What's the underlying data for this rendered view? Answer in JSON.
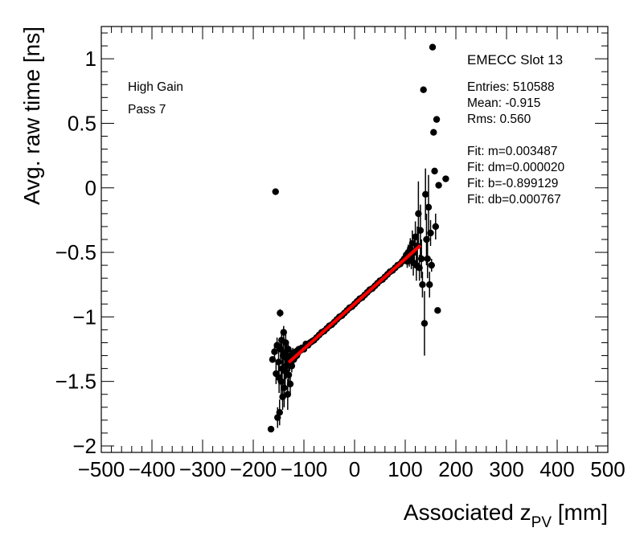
{
  "chart_data": {
    "type": "scatter",
    "title": "",
    "xlabel": "Associated z",
    "xlabel_sub": "PV",
    "xlabel_unit": " [mm]",
    "ylabel": "Avg. raw time [ns]",
    "xlim": [
      -500,
      500
    ],
    "ylim": [
      -2.05,
      1.25
    ],
    "x_ticks": [
      -500,
      -400,
      -300,
      -200,
      -100,
      0,
      100,
      200,
      300,
      400,
      500
    ],
    "x_tick_labels": [
      "−500",
      "−400",
      "−300",
      "−200",
      "−100",
      "0",
      "100",
      "200",
      "300",
      "400",
      "500"
    ],
    "y_ticks": [
      -2,
      -1.5,
      -1,
      -0.5,
      0,
      0.5,
      1
    ],
    "y_tick_labels": [
      "−2",
      "−1.5",
      "−1",
      "−0.5",
      "0",
      "0.5",
      "1"
    ],
    "grid": false,
    "annotations": {
      "gain": "High Gain",
      "pass": "Pass 7"
    },
    "stats_box": {
      "title": "EMECC Slot 13",
      "lines": [
        "Entries: 510588",
        "Mean: -0.915",
        "Rms: 0.560"
      ],
      "fit_lines": [
        "Fit: m=0.003487",
        "Fit: dm=0.000020",
        "Fit: b=-0.899129",
        "Fit: db=0.000767"
      ]
    },
    "fit": {
      "m": 0.003487,
      "b": -0.899129,
      "x_range": [
        -130,
        130
      ],
      "color": "#ff0000"
    },
    "marker_color": "#000000",
    "series": [
      {
        "points": [
          [
            -165,
            -1.87,
            0
          ],
          [
            -162,
            -1.33,
            0
          ],
          [
            -158,
            -1.27,
            0.05
          ],
          [
            -156,
            -0.03,
            0
          ],
          [
            -155,
            -1.44,
            0.08
          ],
          [
            -153,
            -1.22,
            0.06
          ],
          [
            -152,
            -1.78,
            0.08
          ],
          [
            -150,
            -1.35,
            0.1
          ],
          [
            -149,
            -1.47,
            0.12
          ],
          [
            -148,
            -1.74,
            0.1
          ],
          [
            -147,
            -0.97,
            0.03
          ],
          [
            -146,
            -1.25,
            0.08
          ],
          [
            -145,
            -1.5,
            0.1
          ],
          [
            -144,
            -1.18,
            0.08
          ],
          [
            -143,
            -1.4,
            0.1
          ],
          [
            -142,
            -1.62,
            0.1
          ],
          [
            -141,
            -1.3,
            0.12
          ],
          [
            -140,
            -1.12,
            0.05
          ],
          [
            -139,
            -1.55,
            0.15
          ],
          [
            -138,
            -1.28,
            0.08
          ],
          [
            -137,
            -1.42,
            0.12
          ],
          [
            -136,
            -1.2,
            0.1
          ],
          [
            -135,
            -1.38,
            0.1
          ],
          [
            -134,
            -1.32,
            0.1
          ],
          [
            -132,
            -1.6,
            0.12
          ],
          [
            -131,
            -1.25,
            0.06
          ],
          [
            -130,
            -1.45,
            0.08
          ],
          [
            -128,
            -1.36,
            0.06
          ],
          [
            -127,
            -1.52,
            0.08
          ],
          [
            -126,
            -1.3,
            0.05
          ],
          [
            -124,
            -1.38,
            0.05
          ],
          [
            -122,
            -1.28,
            0.04
          ],
          [
            -120,
            -1.33,
            0.05
          ],
          [
            -118,
            -1.29,
            0.03
          ],
          [
            -116,
            -1.27,
            0.03
          ],
          [
            -114,
            -1.3,
            0.03
          ],
          [
            -112,
            -1.28,
            0.03
          ],
          [
            -110,
            -1.25,
            0.02
          ],
          [
            -107,
            -1.26,
            0.02
          ],
          [
            -104,
            -1.24,
            0.02
          ],
          [
            -100,
            -1.25,
            0.02
          ],
          [
            -96,
            -1.21,
            0.02
          ],
          [
            -92,
            -1.22,
            0.02
          ],
          [
            -88,
            -1.2,
            0.02
          ],
          [
            -84,
            -1.19,
            0.015
          ],
          [
            -80,
            -1.18,
            0.015
          ],
          [
            -75,
            -1.16,
            0.015
          ],
          [
            -70,
            -1.14,
            0.015
          ],
          [
            -65,
            -1.12,
            0.015
          ],
          [
            -60,
            -1.11,
            0.01
          ],
          [
            -55,
            -1.09,
            0.01
          ],
          [
            -50,
            -1.07,
            0.01
          ],
          [
            -45,
            -1.06,
            0.01
          ],
          [
            -40,
            -1.04,
            0.01
          ],
          [
            -35,
            -1.02,
            0.01
          ],
          [
            -30,
            -1.0,
            0.01
          ],
          [
            -25,
            -0.99,
            0.01
          ],
          [
            -20,
            -0.97,
            0.01
          ],
          [
            -15,
            -0.95,
            0.01
          ],
          [
            -10,
            -0.93,
            0.01
          ],
          [
            -5,
            -0.92,
            0.01
          ],
          [
            0,
            -0.9,
            0.01
          ],
          [
            5,
            -0.88,
            0.01
          ],
          [
            10,
            -0.86,
            0.01
          ],
          [
            15,
            -0.85,
            0.01
          ],
          [
            20,
            -0.83,
            0.01
          ],
          [
            25,
            -0.81,
            0.01
          ],
          [
            30,
            -0.79,
            0.01
          ],
          [
            35,
            -0.78,
            0.01
          ],
          [
            40,
            -0.76,
            0.01
          ],
          [
            45,
            -0.74,
            0.01
          ],
          [
            50,
            -0.72,
            0.015
          ],
          [
            55,
            -0.71,
            0.015
          ],
          [
            60,
            -0.69,
            0.015
          ],
          [
            65,
            -0.67,
            0.015
          ],
          [
            70,
            -0.65,
            0.015
          ],
          [
            75,
            -0.64,
            0.02
          ],
          [
            80,
            -0.62,
            0.02
          ],
          [
            85,
            -0.6,
            0.02
          ],
          [
            90,
            -0.59,
            0.02
          ],
          [
            94,
            -0.57,
            0.03
          ],
          [
            98,
            -0.55,
            0.03
          ],
          [
            102,
            -0.52,
            0.04
          ],
          [
            104,
            -0.57,
            0.05
          ],
          [
            106,
            -0.5,
            0.06
          ],
          [
            108,
            -0.55,
            0.06
          ],
          [
            110,
            -0.47,
            0.08
          ],
          [
            112,
            -0.55,
            0.08
          ],
          [
            114,
            -0.43,
            0.1
          ],
          [
            116,
            -0.58,
            0.1
          ],
          [
            118,
            -0.5,
            0.12
          ],
          [
            120,
            -0.38,
            0.12
          ],
          [
            122,
            -0.6,
            0.12
          ],
          [
            124,
            -0.45,
            0.15
          ],
          [
            126,
            -0.2,
            0.25
          ],
          [
            128,
            -0.62,
            0.1
          ],
          [
            130,
            -0.33,
            0.2
          ],
          [
            132,
            -0.55,
            0.15
          ],
          [
            134,
            -0.75,
            0.1
          ],
          [
            136,
            0.76,
            0
          ],
          [
            138,
            -1.05,
            0.25
          ],
          [
            140,
            -0.05,
            0.2
          ],
          [
            142,
            -0.4,
            0.2
          ],
          [
            144,
            -0.55,
            0.15
          ],
          [
            146,
            -0.15,
            0.25
          ],
          [
            148,
            -0.75,
            0.1
          ],
          [
            150,
            -0.35,
            0.1
          ],
          [
            152,
            -0.6,
            0.05
          ],
          [
            154,
            1.09,
            0
          ],
          [
            156,
            0.43,
            0
          ],
          [
            158,
            0.13,
            0
          ],
          [
            160,
            -0.3,
            0.1
          ],
          [
            162,
            0.53,
            0
          ],
          [
            164,
            -0.95,
            0
          ],
          [
            166,
            0.02,
            0
          ],
          [
            180,
            0.07,
            0
          ]
        ]
      }
    ]
  }
}
